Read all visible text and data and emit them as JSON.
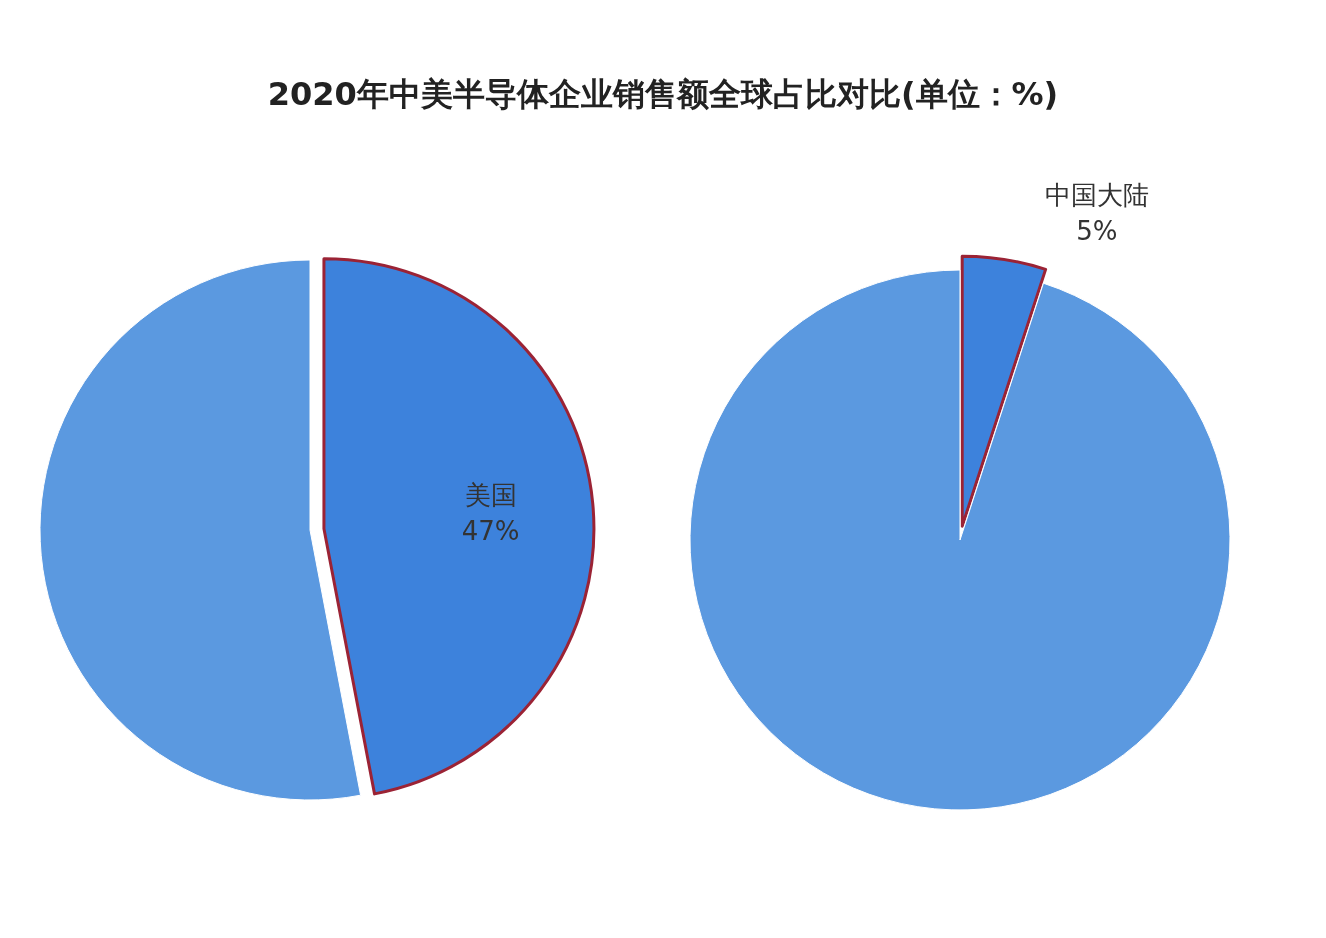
{
  "chart_data": [
    {
      "type": "pie",
      "title": "2020年中美半导体企业销售额全球占比对比(单位：%)",
      "categories": [
        "美国",
        null
      ],
      "values": [
        47,
        53
      ],
      "colors": [
        "#3d82dc",
        "#5b99e0"
      ],
      "value_labels": [
        "47%",
        null
      ]
    },
    {
      "type": "pie",
      "categories": [
        "中国大陆",
        null
      ],
      "values": [
        5,
        95
      ],
      "colors": [
        "#3d82dc",
        "#5b99e0"
      ],
      "value_labels": [
        "5%",
        null
      ]
    }
  ]
}
